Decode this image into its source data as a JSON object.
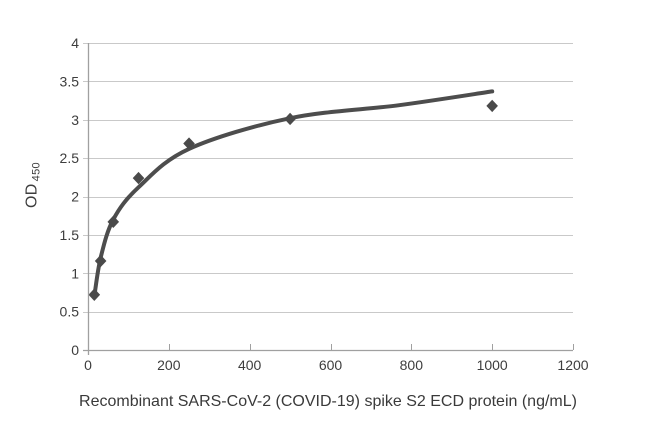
{
  "chart_data": {
    "type": "scatter",
    "title": "",
    "xlabel": "Recombinant SARS-CoV-2 (COVID-19) spike S2 ECD protein (ng/mL)",
    "ylabel": "OD",
    "ylabel_sub": "450",
    "xlim": [
      0,
      1200
    ],
    "ylim": [
      0,
      4
    ],
    "x_ticks": [
      0,
      200,
      400,
      600,
      800,
      1000,
      1200
    ],
    "y_ticks": [
      0,
      0.5,
      1,
      1.5,
      2,
      2.5,
      3,
      3.5,
      4
    ],
    "grid": "horizontal",
    "legend": "none",
    "colors": {
      "series": "#4a4a4a",
      "curve": "#4d4d4d",
      "gridline": "#c9c9c9",
      "axis": "#a0a0a0",
      "tick_text": "#3d3d3d"
    },
    "series": [
      {
        "role": "measured-points",
        "type": "scatter",
        "marker": "diamond",
        "color": "#4a4a4a",
        "points": [
          [
            15.6,
            0.72
          ],
          [
            31.25,
            1.16
          ],
          [
            62.5,
            1.67
          ],
          [
            125,
            2.24
          ],
          [
            250,
            2.69
          ],
          [
            500,
            3.01
          ],
          [
            1000,
            3.18
          ]
        ]
      },
      {
        "role": "fitted-curve",
        "type": "line",
        "color": "#4d4d4d",
        "stroke_width": 4,
        "points": [
          [
            15.6,
            0.7
          ],
          [
            31.25,
            1.2
          ],
          [
            62.5,
            1.7
          ],
          [
            125,
            2.12
          ],
          [
            250,
            2.62
          ],
          [
            500,
            3.02
          ],
          [
            770,
            3.19
          ],
          [
            1000,
            3.37
          ]
        ]
      }
    ]
  }
}
